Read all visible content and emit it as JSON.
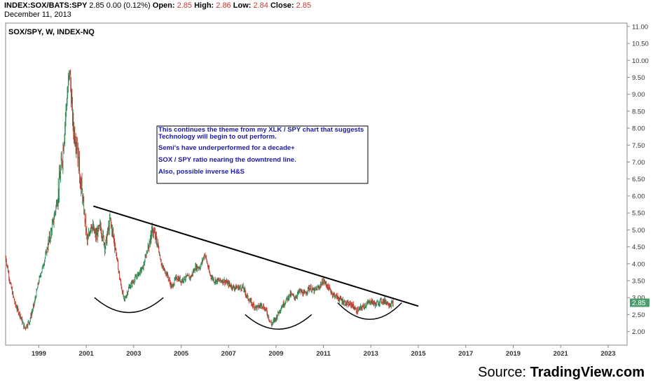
{
  "header": {
    "symbol": "INDEX:SOX/BATS:SPY",
    "last": "2.85",
    "change": "0.00 (0.12%)",
    "open_label": "Open:",
    "open": "2.85",
    "high_label": "High:",
    "high": "2.86",
    "low_label": "Low:",
    "low": "2.84",
    "close_label": "Close:",
    "close": "2.85",
    "date": "December 11, 2013"
  },
  "chart_title": "SOX/SPY, W, INDEX-NQ",
  "annotation": {
    "line1": "This continues the theme from my XLK / SPY chart that suggests Technology will begin to out perform.",
    "line2": "Semi's have underperformed for a decade+",
    "line3": "SOX / SPY ratio nearing the downtrend line.",
    "line4": "Also, possible inverse H&S"
  },
  "source": {
    "prefix": "Source: ",
    "name": "TradingView.com"
  },
  "colors": {
    "up": "#2e8b57",
    "down": "#c0392b",
    "trendline": "#000000",
    "price_label_bg": "#4a9e6b",
    "annotation_text": "#1a1aa6"
  },
  "chart_data": {
    "type": "line",
    "title": "SOX/SPY, W, INDEX-NQ",
    "xlabel": "",
    "ylabel": "",
    "xlim": [
      1997.6,
      2023.8
    ],
    "ylim": [
      1.6,
      11.1
    ],
    "y_scale": "linear",
    "grid": false,
    "x_ticks": [
      "1999",
      "2001",
      "2003",
      "2005",
      "2007",
      "2009",
      "2011",
      "2013",
      "2015",
      "2017",
      "2019",
      "2021",
      "2023"
    ],
    "y_ticks": [
      "2.00",
      "2.50",
      "3.00",
      "3.50",
      "4.00",
      "4.50",
      "5.00",
      "5.50",
      "6.00",
      "6.50",
      "7.00",
      "7.50",
      "8.00",
      "8.50",
      "9.00",
      "9.50",
      "10.00",
      "10.50",
      "11.00"
    ],
    "last_price_label": "2.85",
    "last_price": 2.85,
    "series": [
      {
        "x": [
          1997.6,
          1997.8,
          1998.0,
          1998.2,
          1998.4,
          1998.6,
          1998.8,
          1999.0,
          1999.2,
          1999.4,
          1999.6,
          1999.8,
          2000.0,
          2000.15,
          2000.3,
          2000.45,
          2000.6,
          2000.75,
          2000.9,
          2001.05,
          2001.2,
          2001.4,
          2001.6,
          2001.8,
          2002.0,
          2002.2,
          2002.4,
          2002.6,
          2002.8,
          2003.0,
          2003.2,
          2003.4,
          2003.6,
          2003.8,
          2004.0,
          2004.2,
          2004.4,
          2004.6,
          2004.8,
          2005.0,
          2005.2,
          2005.4,
          2005.6,
          2005.8,
          2006.0,
          2006.2,
          2006.4,
          2006.6,
          2006.8,
          2007.0,
          2007.2,
          2007.4,
          2007.6,
          2007.8,
          2008.0,
          2008.2,
          2008.4,
          2008.6,
          2008.8,
          2009.0,
          2009.2,
          2009.4,
          2009.6,
          2009.8,
          2010.0,
          2010.2,
          2010.4,
          2010.6,
          2010.8,
          2011.0,
          2011.2,
          2011.4,
          2011.6,
          2011.8,
          2012.0,
          2012.2,
          2012.4,
          2012.6,
          2012.8,
          2013.0,
          2013.2,
          2013.4,
          2013.6,
          2013.8,
          2013.95
        ],
        "y": [
          4.2,
          3.4,
          2.8,
          2.5,
          2.1,
          2.3,
          2.8,
          3.5,
          4.0,
          4.6,
          5.2,
          6.0,
          7.2,
          8.6,
          9.7,
          8.0,
          7.6,
          6.5,
          5.6,
          4.6,
          5.2,
          4.8,
          5.1,
          4.5,
          5.3,
          4.6,
          3.6,
          2.9,
          3.3,
          3.5,
          3.7,
          3.9,
          4.5,
          5.0,
          4.6,
          3.9,
          3.7,
          3.3,
          3.6,
          3.5,
          3.6,
          3.6,
          3.9,
          3.9,
          4.3,
          3.7,
          3.5,
          3.5,
          3.5,
          3.4,
          3.3,
          3.3,
          3.3,
          3.0,
          2.8,
          2.7,
          2.8,
          2.6,
          2.2,
          2.4,
          2.7,
          2.9,
          3.1,
          3.0,
          3.2,
          3.1,
          3.3,
          3.2,
          3.3,
          3.5,
          3.3,
          3.1,
          3.0,
          2.9,
          2.8,
          2.8,
          2.6,
          2.7,
          2.8,
          2.9,
          2.8,
          2.9,
          2.9,
          2.8,
          2.85
        ]
      }
    ],
    "trendline": {
      "x": [
        2001.3,
        2015.0
      ],
      "y": [
        5.7,
        2.75
      ]
    },
    "arcs": [
      {
        "x": [
          2001.35,
          2004.25
        ],
        "top": 3.0,
        "bottom": 2.56
      },
      {
        "x": [
          2007.7,
          2010.5
        ],
        "top": 2.5,
        "bottom": 2.07
      },
      {
        "x": [
          2011.6,
          2014.3
        ],
        "top": 2.85,
        "bottom": 2.36
      }
    ]
  }
}
